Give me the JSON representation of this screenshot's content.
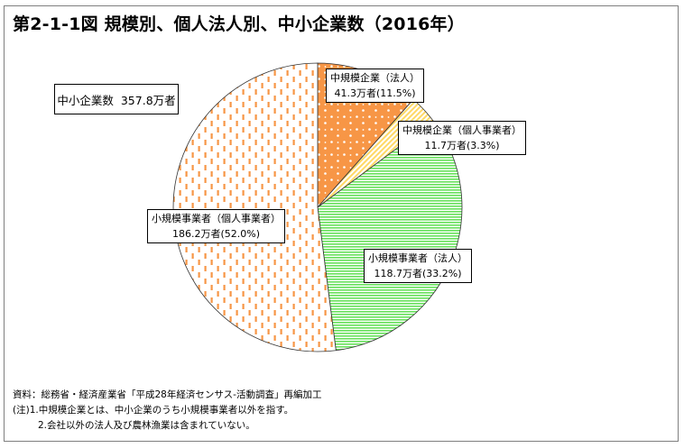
{
  "title": "第2-1-1図 規模別、個人法人別、中小企業数（2016年）",
  "total": {
    "label": "中小企業数",
    "value": "357.8万者"
  },
  "chart_data": {
    "type": "pie",
    "title": "第2-1-1図 規模別、個人法人別、中小企業数（2016年）",
    "unit": "万者",
    "slices": [
      {
        "name": "中規模企業（法人）",
        "value": 41.3,
        "percent": 11.5,
        "value_label": "41.3万者(11.5%)",
        "color": "#f79646",
        "pattern": "dots"
      },
      {
        "name": "中規模企業（個人事業者）",
        "value": 11.7,
        "percent": 3.3,
        "value_label": "11.7万者(3.3%)",
        "color": "#ffd966",
        "pattern": "diagonal"
      },
      {
        "name": "小規模事業者（法人）",
        "value": 118.7,
        "percent": 33.2,
        "value_label": "118.7万者(33.2%)",
        "color": "#66e05a",
        "pattern": "horizontal-stripes"
      },
      {
        "name": "小規模事業者（個人事業者）",
        "value": 186.2,
        "percent": 52.0,
        "value_label": "186.2万者(52.0%)",
        "color": "#f79646",
        "pattern": "dashes"
      }
    ]
  },
  "notes": {
    "source": "資料：総務省・経済産業省「平成28年経済センサス-活動調査」再編加工",
    "note1": "(注)1.中規模企業とは、中小企業のうち小規模事業者以外を指す。",
    "note2": "2.会社以外の法人及び農林漁業は含まれていない。"
  }
}
